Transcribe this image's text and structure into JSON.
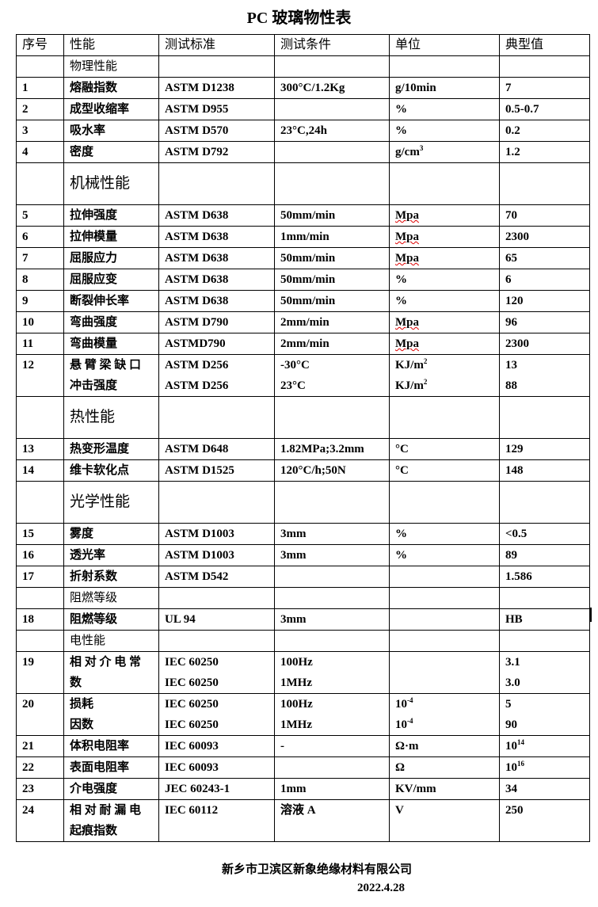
{
  "title": "PC 玻璃物性表",
  "headers": [
    "序号",
    "性能",
    "测试标准",
    "测试条件",
    "单位",
    "典型值"
  ],
  "rows": [
    {
      "type": "section-small",
      "label": "物理性能"
    },
    {
      "type": "row",
      "cells": [
        "1",
        "熔融指数",
        "ASTM D1238",
        "300°C/1.2Kg",
        "g/10min",
        "7"
      ]
    },
    {
      "type": "row",
      "cells": [
        "2",
        "成型收缩率",
        "ASTM D955",
        "",
        "%",
        "0.5-0.7"
      ]
    },
    {
      "type": "row",
      "cells": [
        "3",
        "吸水率",
        "ASTM D570",
        "23°C,24h",
        "%",
        "0.2"
      ]
    },
    {
      "type": "row",
      "cells": [
        "4",
        "密度",
        "ASTM D792",
        "",
        {
          "base": "g/cm",
          "sup": "3"
        },
        "1.2"
      ]
    },
    {
      "type": "section-big",
      "label": "机械性能"
    },
    {
      "type": "row",
      "cells": [
        "5",
        "拉伸强度",
        "ASTM D638",
        "50mm/min",
        {
          "wavy": "Mpa"
        },
        "70"
      ]
    },
    {
      "type": "row",
      "cells": [
        "6",
        "拉伸模量",
        "ASTM D638",
        "1mm/min",
        {
          "wavy": "Mpa"
        },
        "2300"
      ]
    },
    {
      "type": "row",
      "cells": [
        "7",
        "屈服应力",
        "ASTM D638",
        "50mm/min",
        {
          "wavy": "Mpa"
        },
        "65"
      ]
    },
    {
      "type": "row",
      "cells": [
        "8",
        "屈服应变",
        "ASTM D638",
        "50mm/min",
        "%",
        "6"
      ]
    },
    {
      "type": "row",
      "cells": [
        "9",
        "断裂伸长率",
        "ASTM D638",
        "50mm/min",
        "%",
        "120"
      ]
    },
    {
      "type": "row",
      "cells": [
        "10",
        "弯曲强度",
        "ASTM D790",
        "2mm/min",
        {
          "wavy": "Mpa"
        },
        "96"
      ]
    },
    {
      "type": "row",
      "cells": [
        "11",
        "弯曲模量",
        "ASTMD790",
        "2mm/min",
        {
          "wavy": "Mpa"
        },
        "2300"
      ]
    },
    {
      "type": "double",
      "cells": [
        "12",
        [
          "悬 臂 梁 缺 口",
          "冲击强度"
        ],
        [
          "ASTM D256",
          "ASTM D256"
        ],
        [
          "-30°C",
          "23°C"
        ],
        [
          {
            "base": "KJ/m",
            "sup": "2"
          },
          {
            "base": "KJ/m",
            "sup": "2"
          }
        ],
        [
          "13",
          "88"
        ]
      ]
    },
    {
      "type": "section-big",
      "label": "热性能"
    },
    {
      "type": "row",
      "cells": [
        "13",
        "热变形温度",
        "ASTM D648",
        "1.82MPa;3.2mm",
        "°C",
        "129"
      ]
    },
    {
      "type": "row",
      "cells": [
        "14",
        "维卡软化点",
        "ASTM D1525",
        "120°C/h;50N",
        "°C",
        "148"
      ]
    },
    {
      "type": "section-big",
      "label": "光学性能"
    },
    {
      "type": "row",
      "cells": [
        "15",
        "雾度",
        "ASTM D1003",
        "3mm",
        "%",
        "<0.5"
      ]
    },
    {
      "type": "row",
      "cells": [
        "16",
        "透光率",
        "ASTM D1003",
        "3mm",
        "%",
        "89"
      ]
    },
    {
      "type": "row",
      "cells": [
        "17",
        "折射系数",
        "ASTM D542",
        "",
        "",
        "1.586"
      ]
    },
    {
      "type": "section-small",
      "label": "阻燃等级"
    },
    {
      "type": "row",
      "cells": [
        "18",
        "阻燃等级",
        "UL 94",
        "3mm",
        "",
        "HB"
      ]
    },
    {
      "type": "section-small",
      "label": "电性能"
    },
    {
      "type": "double",
      "cells": [
        "19",
        [
          "相 对 介 电 常",
          "数"
        ],
        [
          "IEC 60250",
          "IEC 60250"
        ],
        [
          "100Hz",
          "1MHz"
        ],
        [
          "",
          ""
        ],
        [
          "3.1",
          "3.0"
        ]
      ]
    },
    {
      "type": "double",
      "cells": [
        "20",
        [
          "损耗",
          "因数"
        ],
        [
          "IEC 60250",
          "IEC 60250"
        ],
        [
          "100Hz",
          "1MHz"
        ],
        [
          {
            "base": "10",
            "sup": "-4"
          },
          {
            "base": "10",
            "sup": "-4"
          }
        ],
        [
          "5",
          "90"
        ]
      ]
    },
    {
      "type": "row",
      "cells": [
        "21",
        "体积电阻率",
        "IEC 60093",
        "-",
        "Ω·m",
        {
          "base": "10",
          "sup": "14"
        }
      ]
    },
    {
      "type": "row",
      "cells": [
        "22",
        "表面电阻率",
        "IEC 60093",
        "",
        "Ω",
        {
          "base": "10",
          "sup": "16"
        }
      ]
    },
    {
      "type": "row",
      "cells": [
        "23",
        "介电强度",
        "JEC 60243-1",
        "1mm",
        "KV/mm",
        "34"
      ]
    },
    {
      "type": "double",
      "cells": [
        "24",
        [
          "相 对 耐 漏 电",
          "起痕指数"
        ],
        [
          "IEC 60112",
          ""
        ],
        [
          "溶液 A",
          ""
        ],
        [
          "V",
          ""
        ],
        [
          "250",
          ""
        ]
      ]
    }
  ],
  "footer": {
    "company": "新乡市卫滨区新象绝缘材料有限公司",
    "date": "2022.4.28"
  }
}
